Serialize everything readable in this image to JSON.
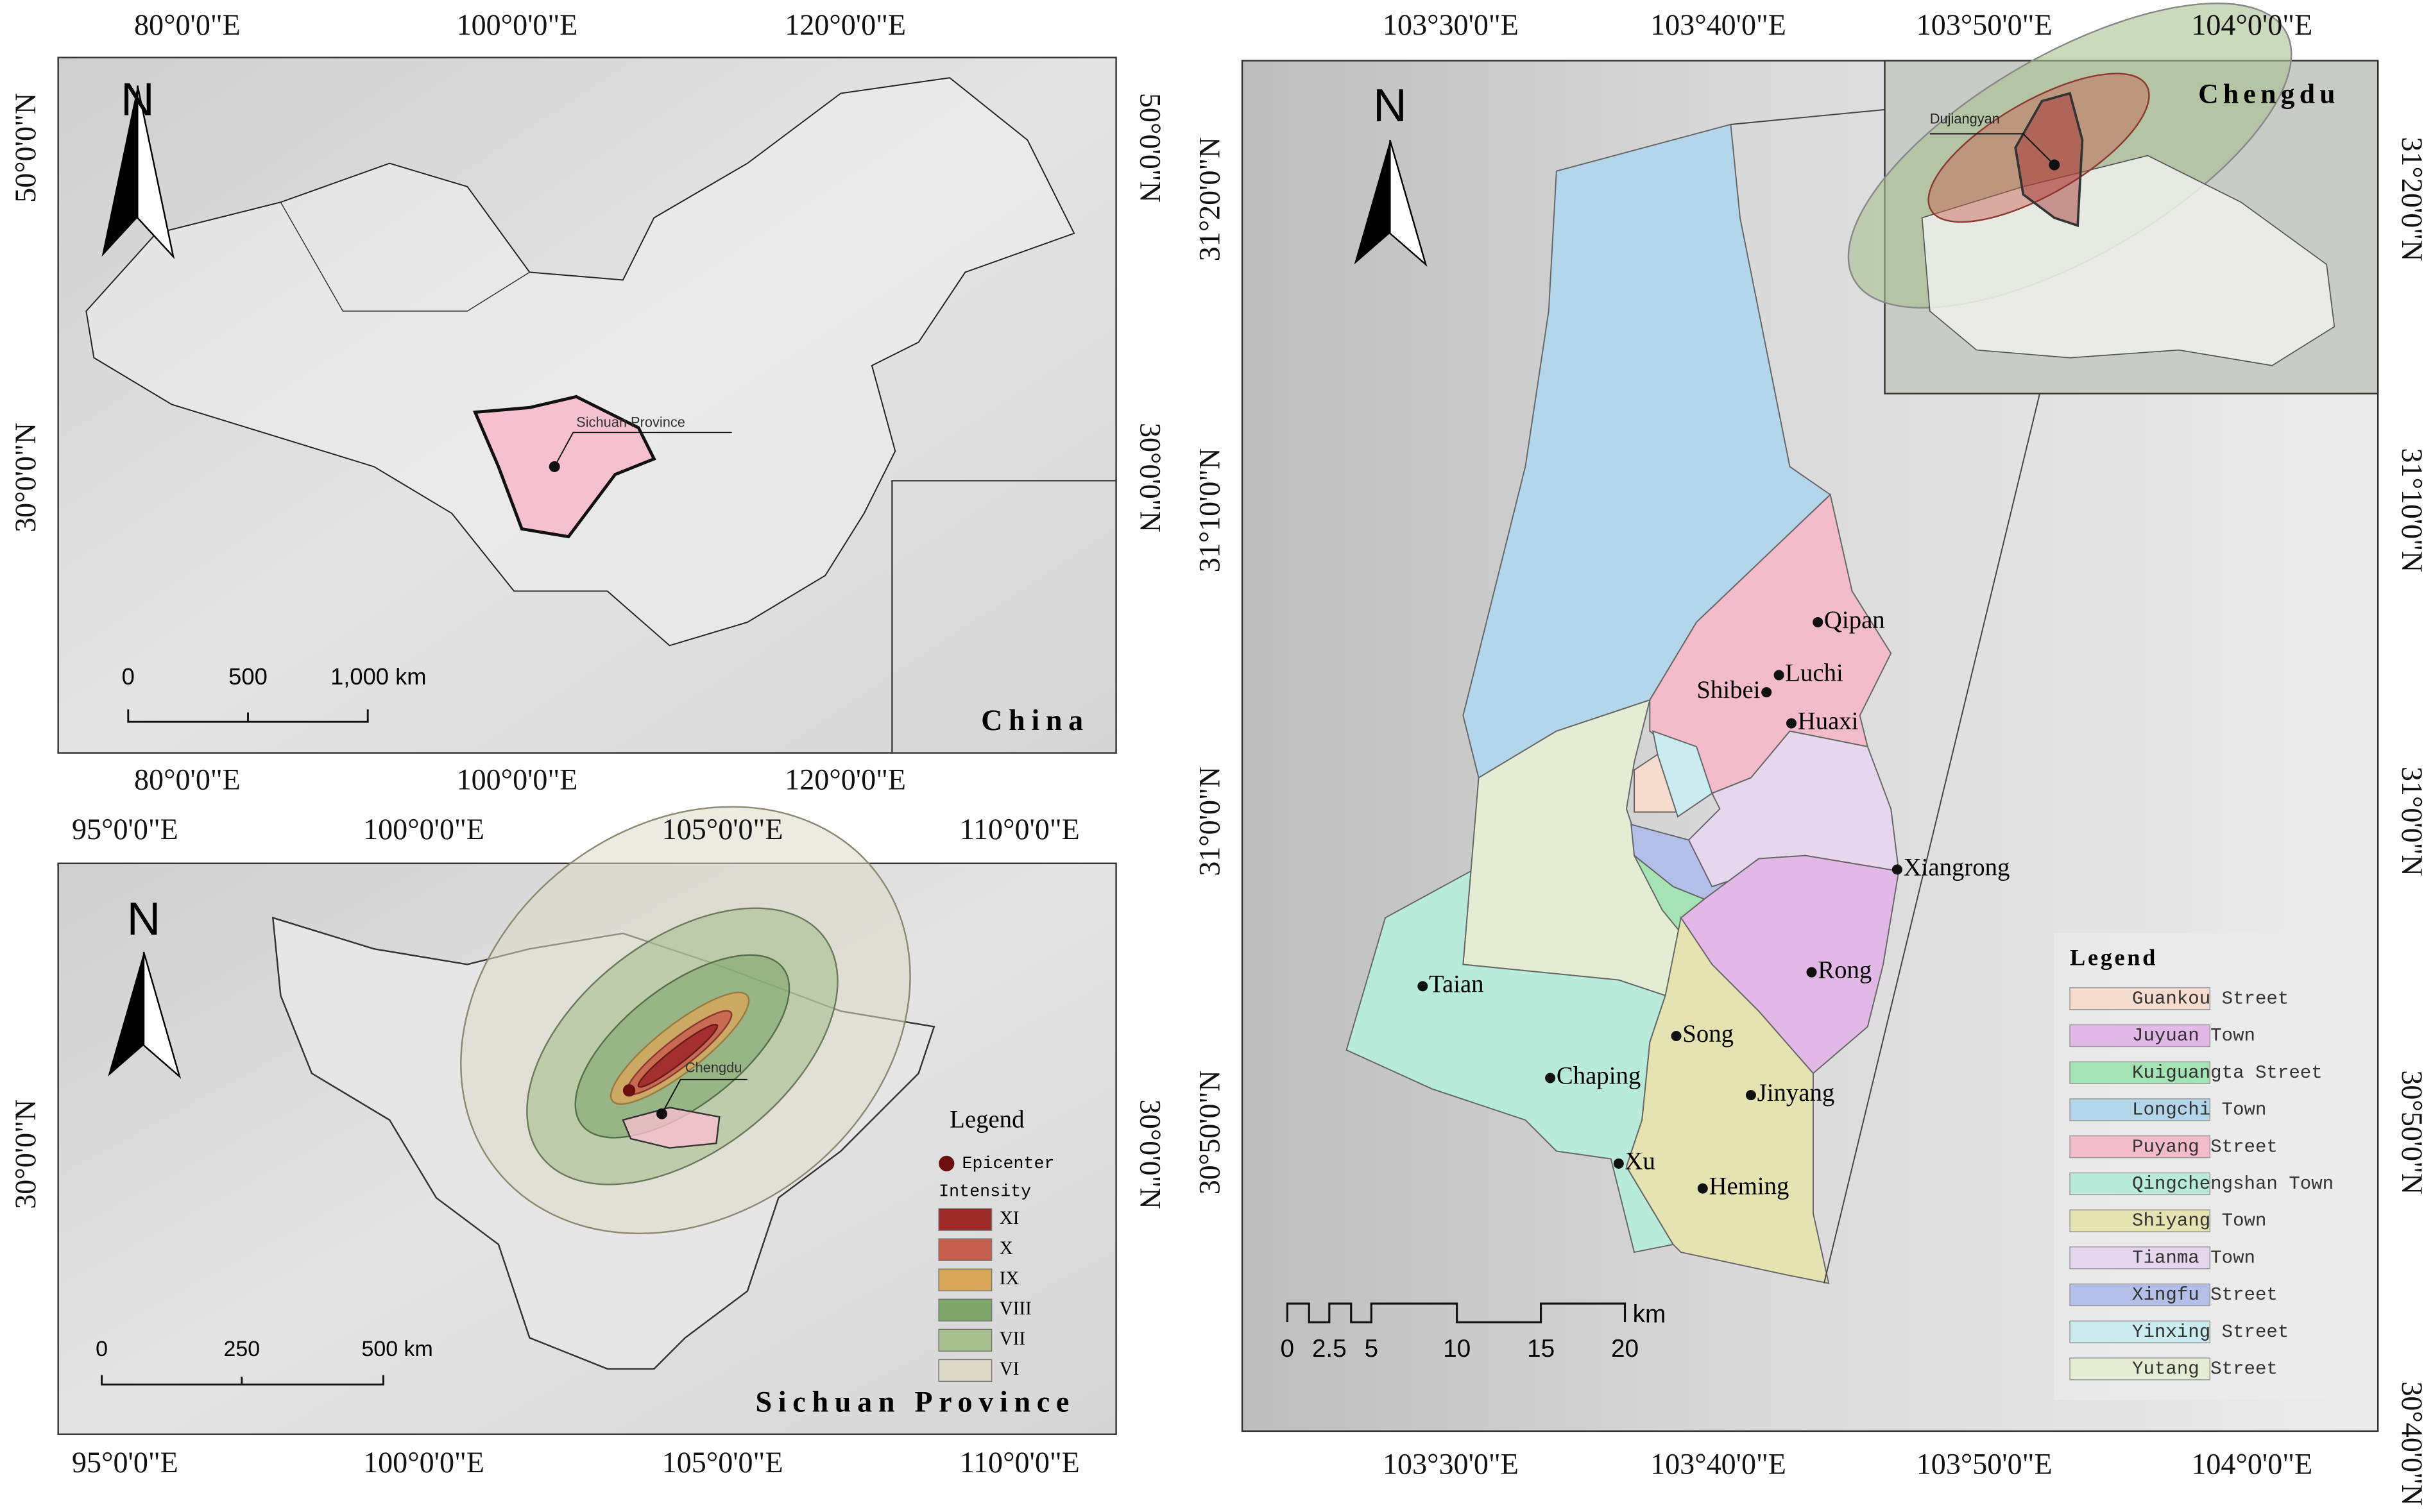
{
  "china_map": {
    "north": "N",
    "title": "China",
    "callout": "Sichuan Province",
    "lon_labels": [
      "80°0'0\"E",
      "100°0'0\"E",
      "120°0'0\"E"
    ],
    "lat_labels": [
      "50°0'0\"N",
      "30°0'0\"N"
    ],
    "scale_labels": [
      "0",
      "500",
      "1,000 km"
    ]
  },
  "sichuan_map": {
    "north": "N",
    "title": "Sichuan Province",
    "callout": "Chengdu",
    "lon_labels": [
      "95°0'0\"E",
      "100°0'0\"E",
      "105°0'0\"E",
      "110°0'0\"E"
    ],
    "lat_labels": [
      "30°0'0\"N"
    ],
    "scale_labels": [
      "0",
      "250",
      "500 km"
    ],
    "legend": {
      "title": "Legend",
      "epicenter": "Epicenter",
      "epicenter_color": "#6b0f0f",
      "intensity_title": "Intensity",
      "levels": [
        {
          "name": "XI",
          "color": "#9e2a2a"
        },
        {
          "name": "X",
          "color": "#c8604f"
        },
        {
          "name": "IX",
          "color": "#d9a85a"
        },
        {
          "name": "VIII",
          "color": "#7fa56a"
        },
        {
          "name": "VII",
          "color": "#a8bf8f"
        },
        {
          "name": "VI",
          "color": "#ddd8c8"
        }
      ]
    }
  },
  "dujiangyan_map": {
    "north": "N",
    "inset_title": "Chengdu",
    "inset_callout": "Dujiangyan",
    "lon_labels": [
      "103°30'0\"E",
      "103°40'0\"E",
      "103°50'0\"E",
      "104°0'0\"E"
    ],
    "lat_labels_left": [
      "31°20'0\"N",
      "31°10'0\"N",
      "31°0'0\"N",
      "30°50'0\"N"
    ],
    "lat_labels_right": [
      "31°20'0\"N",
      "31°10'0\"N",
      "31°0'0\"N",
      "30°50'0\"N",
      "30°40'0\"N"
    ],
    "scale_labels": [
      "0",
      "2.5",
      "5",
      "10",
      "15",
      "20"
    ],
    "scale_unit": "km",
    "places": [
      "Qipan",
      "Luchi",
      "Shibei",
      "Huaxi",
      "Xiangrong",
      "Rong",
      "Taian",
      "Song",
      "Chaping",
      "Jinyang",
      "Xu",
      "Heming"
    ],
    "legend": {
      "title": "Legend",
      "items": [
        {
          "name": "Guankou Street",
          "color": "#f5dccf"
        },
        {
          "name": "Juyuan Town",
          "color": "#e2b8e6"
        },
        {
          "name": "Kuiguangta Street",
          "color": "#a5e2b4"
        },
        {
          "name": "Longchi Town",
          "color": "#b3d6ea"
        },
        {
          "name": "Puyang Street",
          "color": "#f3bccb"
        },
        {
          "name": "Qingchengshan Town",
          "color": "#b9ebdb"
        },
        {
          "name": "Shiyang Town",
          "color": "#e6e3b3"
        },
        {
          "name": "Tianma Town",
          "color": "#e6d6ee"
        },
        {
          "name": "Xingfu Street",
          "color": "#b3bfe8"
        },
        {
          "name": "Yinxing Street",
          "color": "#caecf0"
        },
        {
          "name": "Yutang Street",
          "color": "#e4ecd4"
        }
      ]
    }
  }
}
